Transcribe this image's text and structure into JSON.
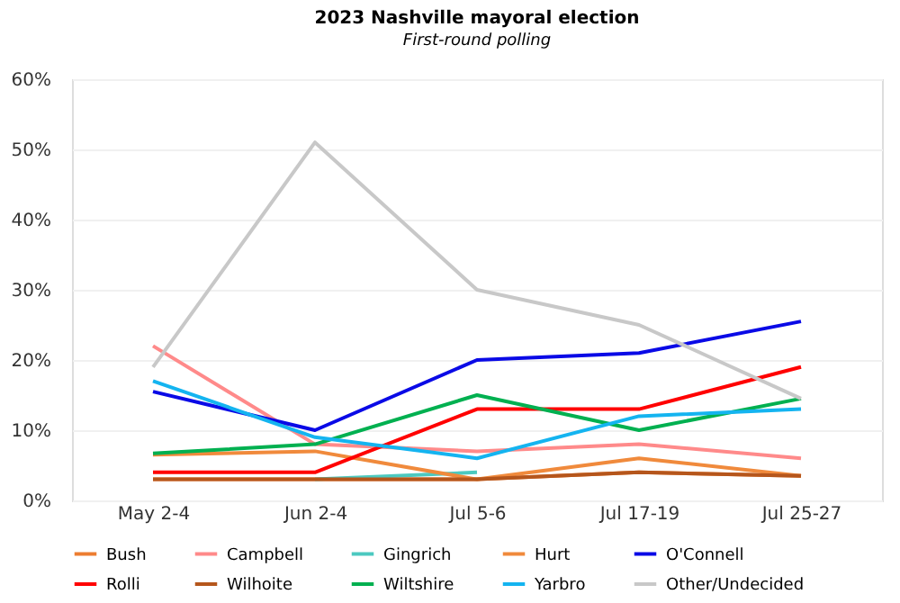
{
  "chart_data": {
    "type": "line",
    "title": "2023 Nashville mayoral election",
    "subtitle": "First-round polling",
    "categories": [
      "May 2-4",
      "Jun 2-4",
      "Jul 5-6",
      "Jul 17-19",
      "Jul 25-27"
    ],
    "ylim": [
      0,
      60
    ],
    "yticks": [
      {
        "value": 0,
        "label": "0%"
      },
      {
        "value": 10,
        "label": "10%"
      },
      {
        "value": 20,
        "label": "20%"
      },
      {
        "value": 30,
        "label": "30%"
      },
      {
        "value": 40,
        "label": "40%"
      },
      {
        "value": 50,
        "label": "50%"
      },
      {
        "value": 60,
        "label": "60%"
      }
    ],
    "grid": "y",
    "legend": "bottom",
    "marker": "none",
    "line_style": "solid",
    "series": [
      {
        "name": "Bush",
        "color": "#ed7d31",
        "values": [
          3,
          3,
          3,
          4,
          3.5
        ]
      },
      {
        "name": "Campbell",
        "color": "#ff8a8a",
        "values": [
          22,
          8,
          7,
          8,
          6
        ]
      },
      {
        "name": "Gingrich",
        "color": "#4cc9c0",
        "values": [
          null,
          3,
          4,
          null,
          null
        ]
      },
      {
        "name": "Hurt",
        "color": "#f08a3c",
        "values": [
          6.5,
          7,
          3,
          6,
          3.5
        ]
      },
      {
        "name": "O'Connell",
        "color": "#0a0ae6",
        "values": [
          15.5,
          10,
          20,
          21,
          25.5
        ]
      },
      {
        "name": "Rolli",
        "color": "#ff0000",
        "values": [
          4,
          4,
          13,
          13,
          19
        ]
      },
      {
        "name": "Wilhoite",
        "color": "#b5561c",
        "values": [
          3,
          3,
          3,
          4,
          3.5
        ]
      },
      {
        "name": "Wiltshire",
        "color": "#00b050",
        "values": [
          6.7,
          8,
          15,
          10,
          14.5
        ]
      },
      {
        "name": "Yarbro",
        "color": "#14b4f0",
        "values": [
          17,
          9,
          6,
          12,
          13
        ]
      },
      {
        "name": "Other/Undecided",
        "color": "#c8c8c8",
        "values": [
          19,
          51,
          30,
          25,
          14.5
        ]
      }
    ]
  }
}
